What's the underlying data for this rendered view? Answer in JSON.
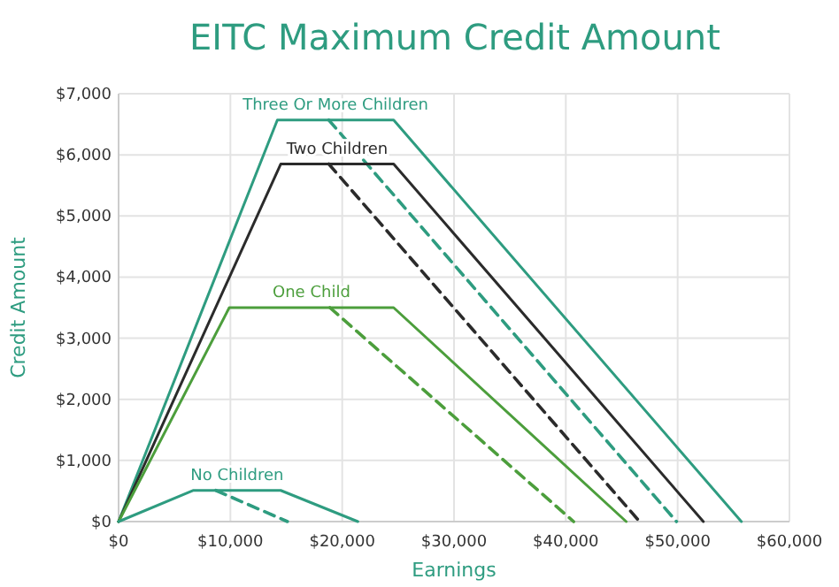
{
  "chart_data": {
    "type": "line",
    "title": "EITC Maximum Credit Amount",
    "xlabel": "Earnings",
    "ylabel": "Credit Amount",
    "xlim": [
      0,
      60000
    ],
    "ylim": [
      0,
      7000
    ],
    "xticks": [
      {
        "value": 0,
        "label": "$0"
      },
      {
        "value": 10000,
        "label": "$10,000"
      },
      {
        "value": 20000,
        "label": "$20,000"
      },
      {
        "value": 30000,
        "label": "$30,000"
      },
      {
        "value": 40000,
        "label": "$40,000"
      },
      {
        "value": 50000,
        "label": "$50,000"
      },
      {
        "value": 60000,
        "label": "$60,000"
      }
    ],
    "yticks": [
      {
        "value": 0,
        "label": "$0"
      },
      {
        "value": 1000,
        "label": "$1,000"
      },
      {
        "value": 2000,
        "label": "$2,000"
      },
      {
        "value": 3000,
        "label": "$3,000"
      },
      {
        "value": 4000,
        "label": "$4,000"
      },
      {
        "value": 5000,
        "label": "$5,000"
      },
      {
        "value": 6000,
        "label": "$6,000"
      },
      {
        "value": 7000,
        "label": "$7,000"
      }
    ],
    "grid": true,
    "marker": "none",
    "series": [
      {
        "name": "Three Or More Children",
        "color": "#2e9c80",
        "x": [
          0,
          14200,
          24600,
          55700
        ],
        "values": [
          0,
          6570,
          6570,
          0
        ],
        "line_style": "solid"
      },
      {
        "color": "#2e9c80",
        "x": [
          18800,
          49900
        ],
        "values": [
          6570,
          0
        ],
        "line_style": "dashed"
      },
      {
        "name": "Two Children",
        "color": "#2b2b2b",
        "x": [
          0,
          14500,
          24600,
          52300
        ],
        "values": [
          0,
          5850,
          5850,
          0
        ],
        "line_style": "solid"
      },
      {
        "color": "#2b2b2b",
        "x": [
          18800,
          46600
        ],
        "values": [
          5850,
          0
        ],
        "line_style": "dashed"
      },
      {
        "name": "One Child",
        "color": "#4c9e3c",
        "x": [
          0,
          9900,
          24600,
          45400
        ],
        "values": [
          0,
          3500,
          3500,
          0
        ],
        "line_style": "solid"
      },
      {
        "color": "#4c9e3c",
        "x": [
          18900,
          40700
        ],
        "values": [
          3500,
          0
        ],
        "line_style": "dashed"
      },
      {
        "name": "No Children",
        "color": "#2e9c80",
        "x": [
          0,
          6700,
          14500,
          21400
        ],
        "values": [
          0,
          510,
          510,
          0
        ],
        "line_style": "solid"
      },
      {
        "color": "#2e9c80",
        "x": [
          8700,
          15100
        ],
        "values": [
          510,
          0
        ],
        "line_style": "dashed"
      }
    ]
  }
}
